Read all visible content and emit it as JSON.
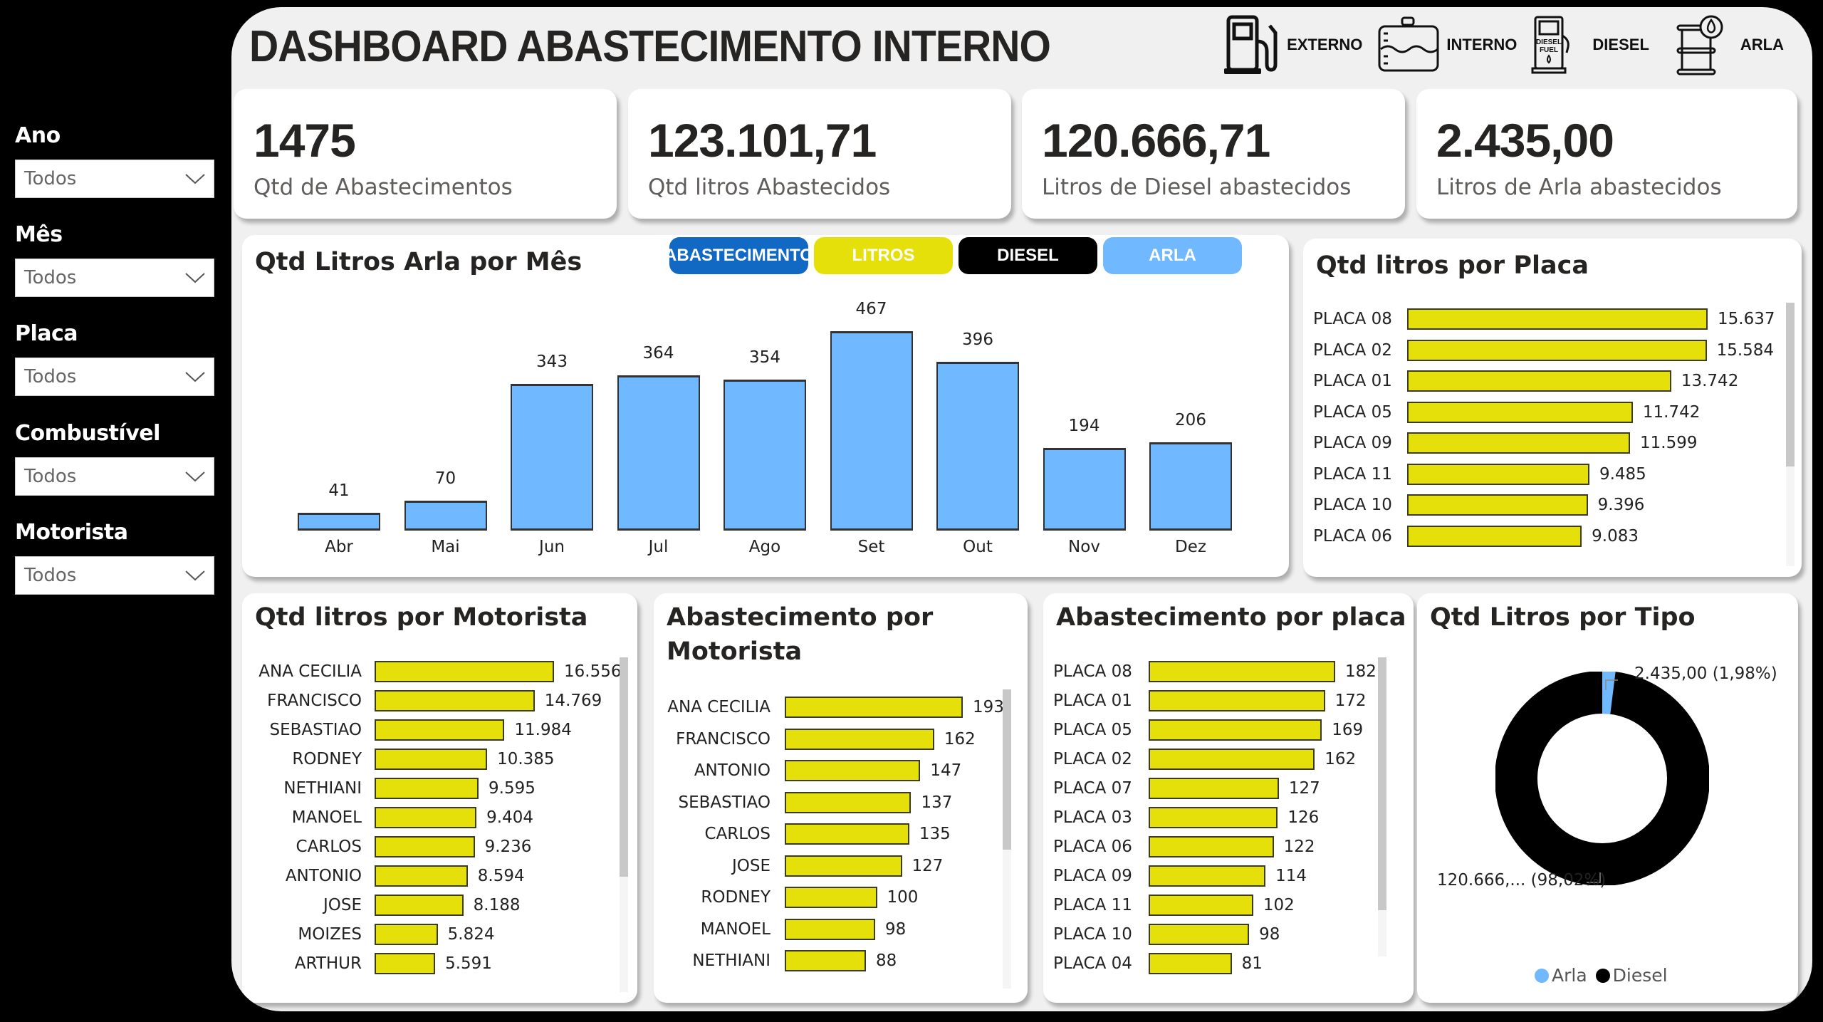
{
  "title": "DASHBOARD ABASTECIMENTO INTERNO",
  "header_legend": [
    {
      "icon": "fuel-pump-icon",
      "label": "EXTERNO"
    },
    {
      "icon": "tank-icon",
      "label": "INTERNO"
    },
    {
      "icon": "diesel-pump-icon",
      "label": "DIESEL"
    },
    {
      "icon": "barrel-drop-icon",
      "label": "ARLA"
    }
  ],
  "diesel_pump_icon_text": {
    "line1": "DIESEL",
    "line2": "FUEL"
  },
  "filters": [
    {
      "label": "Ano",
      "value": "Todos"
    },
    {
      "label": "Mês",
      "value": "Todos"
    },
    {
      "label": "Placa",
      "value": "Todos"
    },
    {
      "label": "Combustível",
      "value": "Todos"
    },
    {
      "label": "Motorista",
      "value": "Todos"
    }
  ],
  "kpis": [
    {
      "value": "1475",
      "label": "Qtd de Abastecimentos"
    },
    {
      "value": "123.101,71",
      "label": "Qtd litros Abastecidos"
    },
    {
      "value": "120.666,71",
      "label": "Litros de Diesel abastecidos"
    },
    {
      "value": "2.435,00",
      "label": "Litros de Arla abastecidos"
    }
  ],
  "toggles": [
    {
      "label": "ABASTECIMENTO",
      "color": "#1269c4"
    },
    {
      "label": "LITROS",
      "color": "#e6e00a"
    },
    {
      "label": "DIESEL",
      "color": "#000000"
    },
    {
      "label": "ARLA",
      "color": "#70b8ff"
    }
  ],
  "colors": {
    "arla": "#70b8ff",
    "diesel": "#000000",
    "bar_yellow": "#e6e00a",
    "abastecimento_blue": "#1269c4",
    "background": "#f0f0f0",
    "frame": "#000000"
  },
  "chart_data": [
    {
      "type": "bar",
      "title": "Qtd Litros Arla por Mês",
      "categories": [
        "Abr",
        "Mai",
        "Jun",
        "Jul",
        "Ago",
        "Set",
        "Out",
        "Nov",
        "Dez"
      ],
      "values": [
        41,
        70,
        343,
        364,
        354,
        467,
        396,
        194,
        206
      ],
      "value_labels": [
        "41",
        "70",
        "343",
        "364",
        "354",
        "467",
        "396",
        "194",
        "206"
      ],
      "xlabel": "",
      "ylabel": "",
      "ylim": [
        0,
        467
      ],
      "grid": false,
      "legend": null
    },
    {
      "type": "bar",
      "orientation": "horizontal",
      "title": "Qtd litros por Placa",
      "categories": [
        "PLACA 08",
        "PLACA 02",
        "PLACA 01",
        "PLACA 05",
        "PLACA 09",
        "PLACA 11",
        "PLACA 10",
        "PLACA 06"
      ],
      "values": [
        15637,
        15584,
        13742,
        11742,
        11599,
        9485,
        9396,
        9083
      ],
      "value_labels": [
        "15.637",
        "15.584",
        "13.742",
        "11.742",
        "11.599",
        "9.485",
        "9.396",
        "9.083"
      ]
    },
    {
      "type": "bar",
      "orientation": "horizontal",
      "title": "Qtd litros por Motorista",
      "categories": [
        "ANA CECILIA",
        "FRANCISCO",
        "SEBASTIAO",
        "RODNEY",
        "NETHIANI",
        "MANOEL",
        "CARLOS",
        "ANTONIO",
        "JOSE",
        "MOIZES",
        "ARTHUR"
      ],
      "values": [
        16556,
        14769,
        11984,
        10385,
        9595,
        9404,
        9236,
        8594,
        8188,
        5824,
        5591
      ],
      "value_labels": [
        "16.556",
        "14.769",
        "11.984",
        "10.385",
        "9.595",
        "9.404",
        "9.236",
        "8.594",
        "8.188",
        "5.824",
        "5.591"
      ]
    },
    {
      "type": "bar",
      "orientation": "horizontal",
      "title": "Abastecimento por Motorista",
      "categories": [
        "ANA CECILIA",
        "FRANCISCO",
        "ANTONIO",
        "SEBASTIAO",
        "CARLOS",
        "JOSE",
        "RODNEY",
        "MANOEL",
        "NETHIANI"
      ],
      "values": [
        193,
        162,
        147,
        137,
        135,
        127,
        100,
        98,
        88
      ],
      "value_labels": [
        "193",
        "162",
        "147",
        "137",
        "135",
        "127",
        "100",
        "98",
        "88"
      ]
    },
    {
      "type": "bar",
      "orientation": "horizontal",
      "title": "Abastecimento por placa",
      "categories": [
        "PLACA 08",
        "PLACA 01",
        "PLACA 05",
        "PLACA 02",
        "PLACA 07",
        "PLACA 03",
        "PLACA 06",
        "PLACA 09",
        "PLACA 11",
        "PLACA 10",
        "PLACA 04"
      ],
      "values": [
        182,
        172,
        169,
        162,
        127,
        126,
        122,
        114,
        102,
        98,
        81
      ],
      "value_labels": [
        "182",
        "172",
        "169",
        "162",
        "127",
        "126",
        "122",
        "114",
        "102",
        "98",
        "81"
      ]
    },
    {
      "type": "pie",
      "subtype": "donut",
      "title": "Qtd Litros por Tipo",
      "categories": [
        "Arla",
        "Diesel"
      ],
      "values": [
        2435.0,
        120666.71
      ],
      "percentages": [
        1.98,
        98.02
      ],
      "data_labels": [
        "2.435,00 (1,98%)",
        "120.666,... (98,02%)"
      ],
      "legend": [
        "Arla",
        "Diesel"
      ],
      "legend_position": "bottom"
    }
  ]
}
